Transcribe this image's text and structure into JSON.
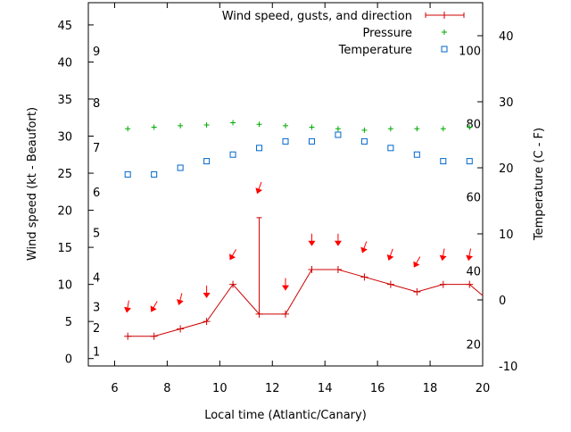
{
  "chart_data": {
    "type": "line",
    "xlabel": "Local time (Atlantic/Canary)",
    "ylabel": "Wind speed (kt - Beaufort)",
    "y2label": "Temperature (C - F)",
    "xlim": [
      5,
      20
    ],
    "ylim": [
      -1,
      48
    ],
    "y2lim": [
      -10,
      45
    ],
    "grid": false,
    "legend_position": "top-right",
    "x_ticks": [
      6,
      8,
      10,
      12,
      14,
      16,
      18,
      20
    ],
    "y_ticks": [
      0,
      5,
      10,
      15,
      20,
      25,
      30,
      35,
      40,
      45
    ],
    "y2_ticks": [
      -10,
      0,
      10,
      20,
      30,
      40
    ],
    "beaufort_labels": [
      {
        "label": "1",
        "value": 1.0
      },
      {
        "label": "2",
        "value": 4.2
      },
      {
        "label": "3",
        "value": 7.0
      },
      {
        "label": "4",
        "value": 11.0
      },
      {
        "label": "5",
        "value": 17.0
      },
      {
        "label": "6",
        "value": 22.5
      },
      {
        "label": "7",
        "value": 28.5
      },
      {
        "label": "8",
        "value": 34.5
      },
      {
        "label": "9",
        "value": 41.5
      }
    ],
    "fahrenheit_labels": [
      {
        "label": "20",
        "value": -6.7
      },
      {
        "label": "40",
        "value": 4.4
      },
      {
        "label": "60",
        "value": 15.6
      },
      {
        "label": "80",
        "value": 26.7
      },
      {
        "label": "100",
        "value": 37.8
      }
    ],
    "series": [
      {
        "name": "Wind speed, gusts, and direction",
        "color": "#cc0000",
        "x": [
          6.5,
          7.5,
          8.5,
          9.5,
          10.5,
          11.5,
          12.5,
          13.5,
          14.5,
          15.5,
          16.5,
          17.5,
          18.5,
          19.5,
          20.0
        ],
        "values": [
          3,
          3,
          4,
          5,
          10,
          6,
          6,
          12,
          12,
          11,
          10,
          9,
          10,
          10,
          8.5
        ]
      },
      {
        "name": "Wind gust",
        "color": "#cc0000",
        "x": [
          11.5
        ],
        "values": [
          19
        ]
      },
      {
        "name": "Wind direction",
        "color": "#ff0000",
        "x": [
          6.5,
          7.5,
          8.5,
          9.5,
          10.5,
          11.5,
          12.5,
          13.5,
          14.5,
          15.5,
          16.5,
          17.5,
          18.5,
          19.5
        ],
        "values": [
          7,
          7,
          8,
          9,
          14,
          23,
          10,
          16,
          16,
          15,
          14,
          13,
          14,
          14
        ],
        "angles_deg": [
          190,
          210,
          195,
          180,
          210,
          200,
          180,
          180,
          180,
          200,
          200,
          210,
          190,
          190
        ]
      },
      {
        "name": "Pressure",
        "color": "#00aa00",
        "x": [
          6.5,
          7.5,
          8.5,
          9.5,
          10.5,
          11.5,
          12.5,
          13.5,
          14.5,
          15.5,
          16.5,
          17.5,
          18.5,
          19.5
        ],
        "values": [
          31,
          31.2,
          31.4,
          31.5,
          31.8,
          31.6,
          31.4,
          31.2,
          31,
          30.8,
          31,
          31,
          31,
          31.2
        ]
      },
      {
        "name": "Temperature",
        "color": "#0066cc",
        "x": [
          6.5,
          7.5,
          8.5,
          9.5,
          10.5,
          11.5,
          12.5,
          13.5,
          14.5,
          15.5,
          16.5,
          17.5,
          18.5,
          19.5
        ],
        "values": [
          19,
          19,
          20,
          21,
          22,
          23,
          24,
          24,
          25,
          24,
          23,
          22,
          21,
          21
        ]
      }
    ]
  }
}
